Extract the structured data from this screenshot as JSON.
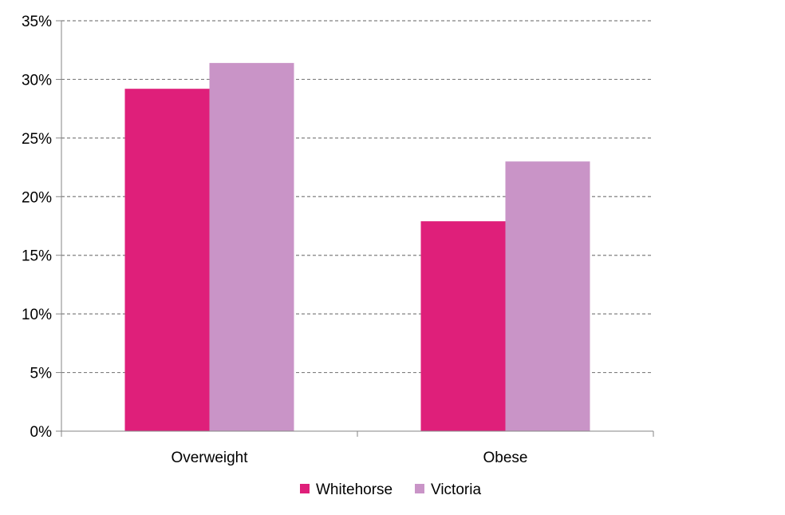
{
  "chart_data": {
    "type": "bar",
    "categories": [
      "Overweight",
      "Obese"
    ],
    "series": [
      {
        "name": "Whitehorse",
        "values": [
          29.2,
          17.9
        ],
        "color": "#DF1F7A"
      },
      {
        "name": "Victoria",
        "values": [
          31.4,
          23.0
        ],
        "color": "#C994C7"
      }
    ],
    "ylim": [
      0,
      35
    ],
    "yticks": [
      0,
      5,
      10,
      15,
      20,
      25,
      30,
      35
    ],
    "ytick_labels": [
      "0%",
      "5%",
      "10%",
      "15%",
      "20%",
      "25%",
      "30%",
      "35%"
    ],
    "grid": true,
    "legend_position": "bottom",
    "title": "",
    "xlabel": "",
    "ylabel": ""
  }
}
